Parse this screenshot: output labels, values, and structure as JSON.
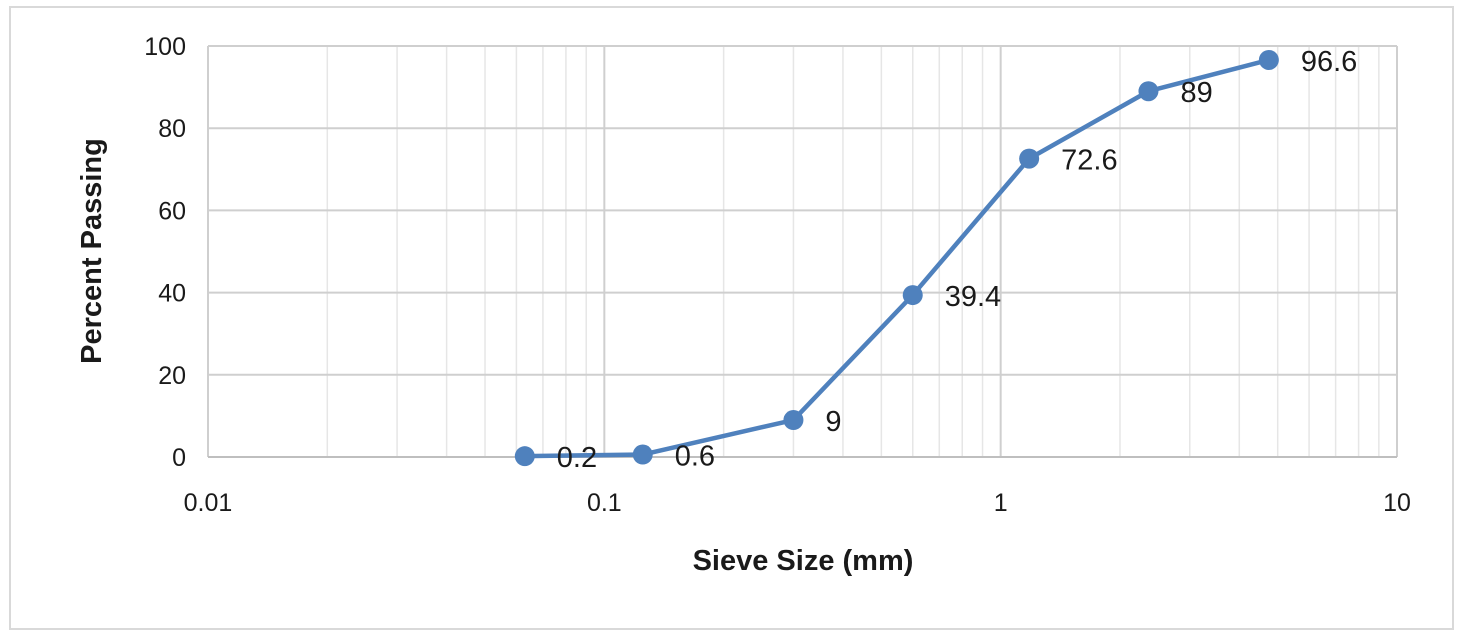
{
  "chart_data": {
    "type": "scatter",
    "title": "",
    "xlabel": "Sieve Size (mm)",
    "ylabel": "Percent Passing",
    "x_scale": "log",
    "xlim": [
      0.01,
      10
    ],
    "ylim": [
      0,
      100
    ],
    "x_ticks": [
      0.01,
      0.1,
      1,
      10
    ],
    "x_tick_labels": [
      "0.01",
      "0.1",
      "1",
      "10"
    ],
    "y_ticks": [
      0,
      20,
      40,
      60,
      80,
      100
    ],
    "y_tick_labels": [
      "0",
      "20",
      "40",
      "60",
      "80",
      "100"
    ],
    "grid": true,
    "legend": "none",
    "series": [
      {
        "color": "#4f81bd",
        "x": [
          0.063,
          0.125,
          0.3,
          0.6,
          1.18,
          2.36,
          4.75
        ],
        "y": [
          0.2,
          0.6,
          9,
          39.4,
          72.6,
          89,
          96.6
        ],
        "labels": [
          "0.2",
          "0.6",
          "9",
          "39.4",
          "72.6",
          "89",
          "96.6"
        ]
      }
    ]
  }
}
